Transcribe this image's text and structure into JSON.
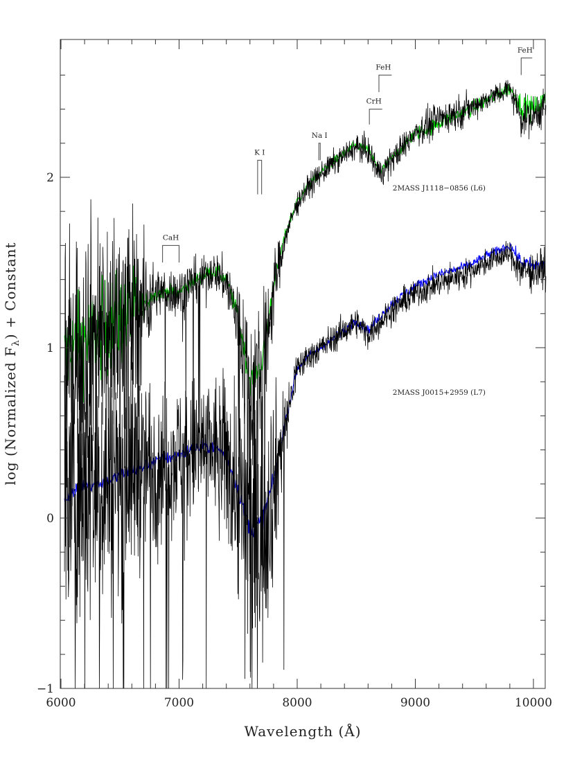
{
  "chart_data": {
    "type": "line",
    "xlabel": "Wavelength (Å)",
    "ylabel_parts": [
      "log (Normalized F",
      "λ",
      ") + Constant"
    ],
    "xlim": [
      6000,
      10105
    ],
    "ylim": [
      -1,
      2.81
    ],
    "xticks": [
      "6000",
      "7000",
      "8000",
      "9000",
      "10000"
    ],
    "yticks": [
      "−1",
      "0",
      "1",
      "2"
    ],
    "grid": false,
    "x": [
      6000,
      6100,
      6200,
      6300,
      6400,
      6500,
      6600,
      6700,
      6800,
      6900,
      7000,
      7100,
      7200,
      7300,
      7400,
      7500,
      7600,
      7700,
      7800,
      7900,
      8000,
      8100,
      8200,
      8300,
      8400,
      8500,
      8600,
      8700,
      8800,
      8900,
      9000,
      9100,
      9200,
      9300,
      9400,
      9500,
      9600,
      9700,
      9800,
      9900,
      10000,
      10100
    ],
    "series": [
      {
        "color": "#00e000",
        "values": [
          0.9,
          1.0,
          1.05,
          1.1,
          1.12,
          1.17,
          1.22,
          1.25,
          1.32,
          1.33,
          1.32,
          1.38,
          1.42,
          1.45,
          1.4,
          1.18,
          0.8,
          0.9,
          1.38,
          1.67,
          1.86,
          1.96,
          2.03,
          2.09,
          2.14,
          2.19,
          2.16,
          2.03,
          2.11,
          2.18,
          2.26,
          2.28,
          2.32,
          2.35,
          2.38,
          2.41,
          2.45,
          2.49,
          2.52,
          2.42,
          2.4,
          2.45
        ],
        "noise": [
          0.2,
          0.2,
          0.2,
          0.2,
          0.2,
          0.2,
          0.2,
          0.05,
          0.03,
          0.03,
          0.03,
          0.03,
          0.03,
          0.03,
          0.03,
          0.04,
          0.05,
          0.05,
          0.03,
          0.02,
          0.02,
          0.02,
          0.02,
          0.02,
          0.02,
          0.02,
          0.02,
          0.02,
          0.02,
          0.02,
          0.03,
          0.03,
          0.03,
          0.03,
          0.03,
          0.03,
          0.03,
          0.03,
          0.03,
          0.05,
          0.05,
          0.05
        ]
      },
      {
        "color": "#0000ff",
        "values": [
          0.1,
          0.15,
          0.2,
          0.2,
          0.22,
          0.25,
          0.28,
          0.3,
          0.33,
          0.35,
          0.37,
          0.4,
          0.42,
          0.42,
          0.36,
          0.17,
          -0.07,
          -0.02,
          0.22,
          0.57,
          0.88,
          0.95,
          1.0,
          1.05,
          1.1,
          1.16,
          1.1,
          1.18,
          1.26,
          1.31,
          1.36,
          1.4,
          1.43,
          1.45,
          1.47,
          1.5,
          1.54,
          1.57,
          1.6,
          1.5,
          1.48,
          1.49
        ],
        "noise": [
          0.03,
          0.03,
          0.03,
          0.03,
          0.03,
          0.03,
          0.03,
          0.03,
          0.03,
          0.03,
          0.03,
          0.03,
          0.03,
          0.03,
          0.03,
          0.03,
          0.04,
          0.04,
          0.03,
          0.02,
          0.02,
          0.02,
          0.02,
          0.02,
          0.02,
          0.02,
          0.02,
          0.02,
          0.02,
          0.02,
          0.02,
          0.02,
          0.02,
          0.02,
          0.02,
          0.02,
          0.02,
          0.02,
          0.02,
          0.03,
          0.03,
          0.03
        ]
      },
      {
        "color": "#000000",
        "values": [
          0.9,
          1.0,
          1.05,
          1.1,
          1.1,
          1.15,
          1.2,
          1.25,
          1.32,
          1.33,
          1.32,
          1.38,
          1.42,
          1.45,
          1.38,
          1.15,
          0.75,
          0.85,
          1.35,
          1.65,
          1.85,
          1.95,
          2.02,
          2.08,
          2.13,
          2.18,
          2.15,
          2.02,
          2.1,
          2.18,
          2.27,
          2.3,
          2.34,
          2.37,
          2.39,
          2.42,
          2.46,
          2.49,
          2.52,
          2.35,
          2.36,
          2.43
        ],
        "noise": [
          0.5,
          0.5,
          0.5,
          0.5,
          0.5,
          0.5,
          0.45,
          0.3,
          0.1,
          0.1,
          0.1,
          0.1,
          0.08,
          0.08,
          0.1,
          0.2,
          0.4,
          0.3,
          0.15,
          0.05,
          0.05,
          0.05,
          0.05,
          0.05,
          0.05,
          0.05,
          0.06,
          0.06,
          0.06,
          0.06,
          0.06,
          0.07,
          0.07,
          0.07,
          0.07,
          0.05,
          0.05,
          0.05,
          0.05,
          0.08,
          0.08,
          0.08
        ]
      },
      {
        "color": "#000000",
        "values": [
          0.1,
          0.15,
          0.2,
          0.2,
          0.22,
          0.25,
          0.28,
          0.3,
          0.33,
          0.35,
          0.37,
          0.4,
          0.42,
          0.42,
          0.35,
          0.15,
          -0.1,
          -0.05,
          0.2,
          0.55,
          0.88,
          0.95,
          1.0,
          1.05,
          1.1,
          1.15,
          1.08,
          1.15,
          1.22,
          1.27,
          1.32,
          1.35,
          1.38,
          1.4,
          1.43,
          1.46,
          1.5,
          1.53,
          1.55,
          1.45,
          1.45,
          1.47
        ],
        "noise": [
          0.6,
          0.6,
          0.6,
          0.6,
          0.55,
          0.5,
          0.45,
          0.4,
          0.35,
          0.3,
          0.3,
          0.3,
          0.3,
          0.3,
          0.35,
          0.45,
          0.6,
          0.6,
          0.4,
          0.15,
          0.07,
          0.06,
          0.06,
          0.06,
          0.06,
          0.06,
          0.06,
          0.06,
          0.06,
          0.06,
          0.06,
          0.06,
          0.06,
          0.06,
          0.06,
          0.05,
          0.05,
          0.05,
          0.05,
          0.08,
          0.08,
          0.08
        ]
      }
    ],
    "annotations": [
      {
        "text": "2MASS J1118−0856 (L6)",
        "x": 8820,
        "y": 1.94
      },
      {
        "text": "2MASS J0015+2959 (L7)",
        "x": 8820,
        "y": 0.74
      }
    ],
    "features": [
      {
        "label": "CaH",
        "kind": "bracket",
        "x1": 6860,
        "x2": 7000,
        "ytop": 1.6,
        "ybot": 1.5
      },
      {
        "label": "K I",
        "kind": "doublet",
        "x1": 7665,
        "x2": 7699,
        "ytop": 2.1,
        "ybot": 1.9
      },
      {
        "label": "Na I",
        "kind": "doublet",
        "x1": 8183,
        "x2": 8195,
        "ytop": 2.2,
        "ybot": 2.1
      },
      {
        "label": "CrH",
        "kind": "bracket-left",
        "x1": 8611,
        "x2": 8720,
        "ytop": 2.4,
        "ybot": 2.31
      },
      {
        "label": "FeH",
        "kind": "bracket-left",
        "x1": 8692,
        "x2": 8800,
        "ytop": 2.6,
        "ybot": 2.5
      },
      {
        "label": "FeH",
        "kind": "bracket-left",
        "x1": 9896,
        "x2": 9990,
        "ytop": 2.7,
        "ybot": 2.6
      }
    ]
  }
}
